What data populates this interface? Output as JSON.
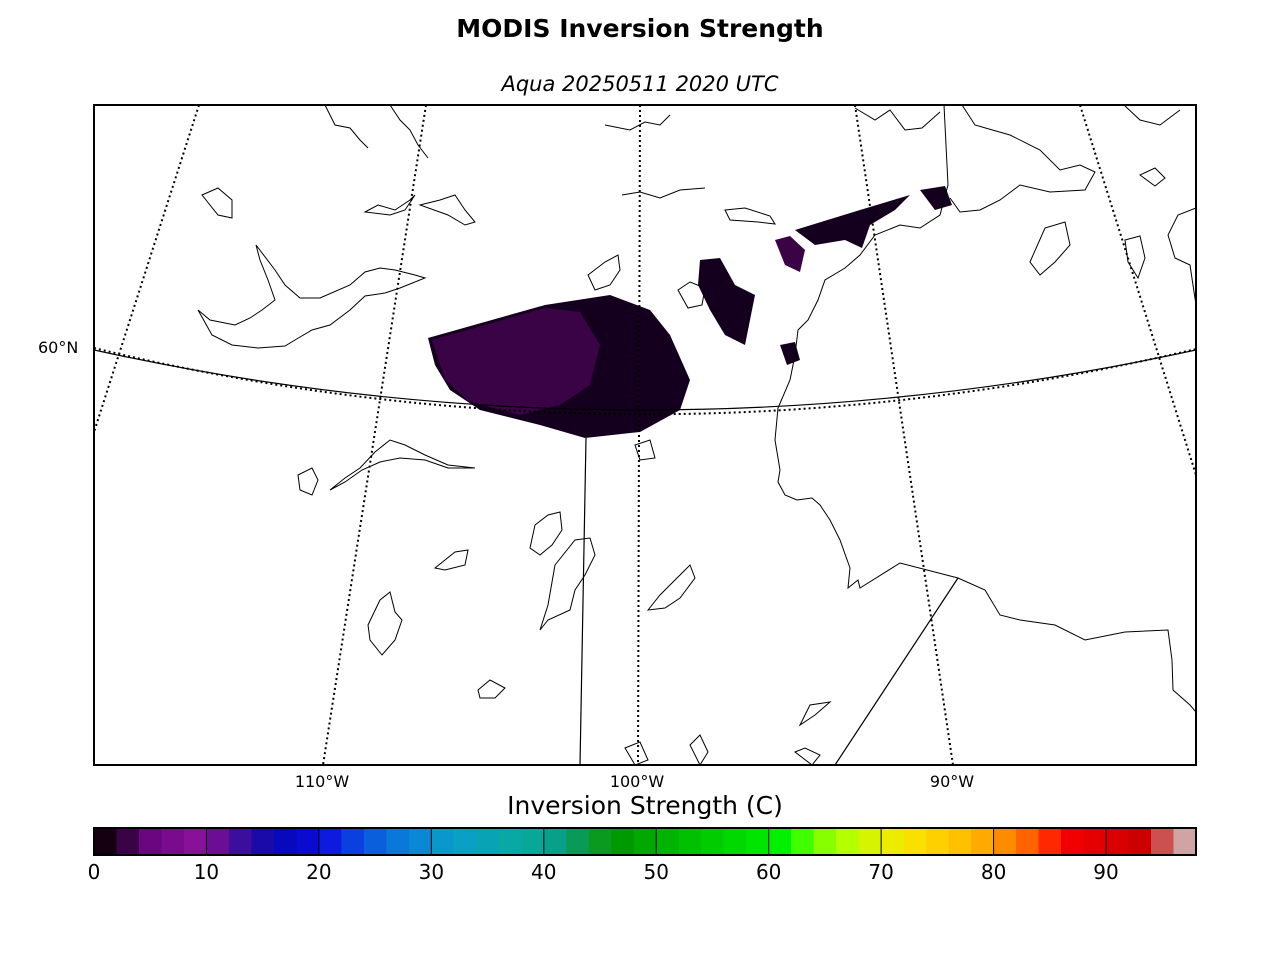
{
  "title": "MODIS Inversion Strength",
  "subtitle": "Aqua 20250511 2020 UTC",
  "map": {
    "lat_labels": [
      {
        "label": "60°N"
      }
    ],
    "lon_labels": [
      {
        "label": "110°W"
      },
      {
        "label": "100°W"
      },
      {
        "label": "90°W"
      }
    ],
    "data_color_dark": "#14001e",
    "data_color_purple": "#3a0346"
  },
  "colorbar": {
    "title": "Inversion Strength (C)",
    "min": 0,
    "max": 98,
    "tick_labels": [
      "0",
      "10",
      "20",
      "30",
      "40",
      "50",
      "60",
      "70",
      "80",
      "90"
    ],
    "colors": [
      "#140010",
      "#3a0346",
      "#6a0680",
      "#7a0a8e",
      "#88119a",
      "#6a0e96",
      "#3b0e9e",
      "#1a0aa8",
      "#0808bc",
      "#0a0ad0",
      "#0e1ae0",
      "#0a40e0",
      "#0a60dc",
      "#0a78d8",
      "#0a88d4",
      "#0a98cc",
      "#0aa0c4",
      "#08a4b4",
      "#08a8a4",
      "#08a898",
      "#08a088",
      "#0a9a58",
      "#0a9a20",
      "#009a00",
      "#00a800",
      "#00b400",
      "#00c000",
      "#00cc00",
      "#00d800",
      "#00e400",
      "#00f000",
      "#40ff00",
      "#88ff00",
      "#b4ff00",
      "#d4f400",
      "#ecec00",
      "#f8e000",
      "#ffd000",
      "#ffc000",
      "#ffaa00",
      "#ff8c00",
      "#ff6400",
      "#ff2800",
      "#f00000",
      "#e40000",
      "#d80000",
      "#cc0000",
      "#cc5050",
      "#d0a4a4"
    ]
  }
}
